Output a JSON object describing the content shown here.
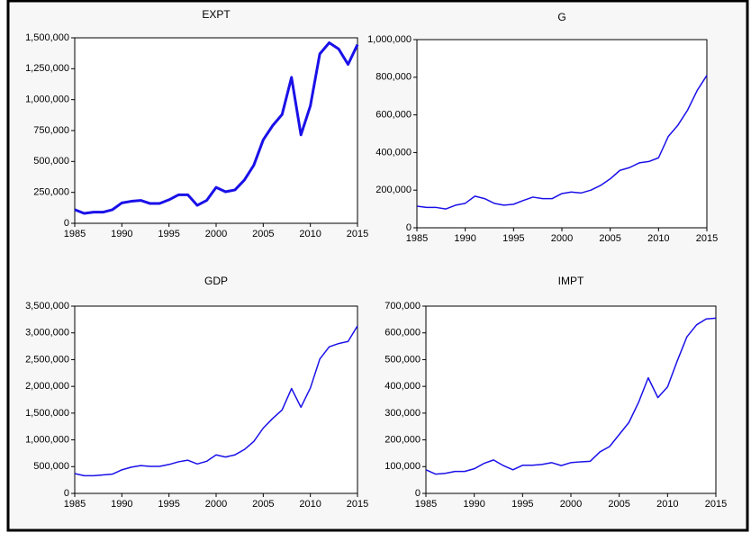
{
  "chart_data": [
    {
      "type": "line",
      "title": "EXPT",
      "color": "#1a10e8",
      "line_width": 3,
      "x": [
        1985,
        1986,
        1987,
        1988,
        1989,
        1990,
        1991,
        1992,
        1993,
        1994,
        1995,
        1996,
        1997,
        1998,
        1999,
        2000,
        2001,
        2002,
        2003,
        2004,
        2005,
        2006,
        2007,
        2008,
        2009,
        2010,
        2011,
        2012,
        2013,
        2014,
        2015
      ],
      "values": [
        110000,
        80000,
        90000,
        90000,
        110000,
        165000,
        178000,
        185000,
        160000,
        160000,
        190000,
        230000,
        230000,
        145000,
        185000,
        290000,
        255000,
        270000,
        350000,
        470000,
        675000,
        790000,
        880000,
        1180000,
        715000,
        950000,
        1370000,
        1460000,
        1410000,
        1285000,
        1445000
      ],
      "xlim": [
        1985,
        2015
      ],
      "xticks": [
        1985,
        1990,
        1995,
        2000,
        2005,
        2010,
        2015
      ],
      "ylim": [
        0,
        1500000
      ],
      "yticks": [
        0,
        {
          "value": 250000,
          "label": "250,000"
        },
        {
          "value": 500000,
          "label": "500,000"
        },
        {
          "value": 750000,
          "label": "750,000"
        },
        {
          "value": 1000000,
          "label": "1,000,000"
        },
        {
          "value": 1250000,
          "label": "1,250,000"
        },
        {
          "value": 1500000,
          "label": "1,500,000"
        }
      ]
    },
    {
      "type": "line",
      "title": "G",
      "color": "#1a10e8",
      "line_width": 1.5,
      "x": [
        1985,
        1986,
        1987,
        1988,
        1989,
        1990,
        1991,
        1992,
        1993,
        1994,
        1995,
        1996,
        1997,
        1998,
        1999,
        2000,
        2001,
        2002,
        2003,
        2004,
        2005,
        2006,
        2007,
        2008,
        2009,
        2010,
        2011,
        2012,
        2013,
        2014,
        2015
      ],
      "values": [
        115000,
        108000,
        108000,
        100000,
        120000,
        130000,
        168000,
        155000,
        130000,
        120000,
        125000,
        145000,
        163000,
        155000,
        155000,
        182000,
        190000,
        185000,
        200000,
        225000,
        260000,
        305000,
        320000,
        345000,
        352000,
        372000,
        485000,
        545000,
        625000,
        730000,
        810000
      ],
      "xlim": [
        1985,
        2015
      ],
      "xticks": [
        1985,
        1990,
        1995,
        2000,
        2005,
        2010,
        2015
      ],
      "ylim": [
        0,
        1000000
      ],
      "yticks": [
        0,
        {
          "value": 200000,
          "label": "200,000"
        },
        {
          "value": 400000,
          "label": "400,000"
        },
        {
          "value": 600000,
          "label": "600,000"
        },
        {
          "value": 800000,
          "label": "800,000"
        },
        {
          "value": 1000000,
          "label": "1,000,000"
        }
      ]
    },
    {
      "type": "line",
      "title": "GDP",
      "color": "#1a10e8",
      "line_width": 1.5,
      "x": [
        1985,
        1986,
        1987,
        1988,
        1989,
        1990,
        1991,
        1992,
        1993,
        1994,
        1995,
        1996,
        1997,
        1998,
        1999,
        2000,
        2001,
        2002,
        2003,
        2004,
        2005,
        2006,
        2007,
        2008,
        2009,
        2010,
        2011,
        2012,
        2013,
        2014,
        2015
      ],
      "values": [
        370000,
        330000,
        330000,
        345000,
        360000,
        440000,
        490000,
        520000,
        505000,
        505000,
        540000,
        590000,
        620000,
        550000,
        600000,
        720000,
        680000,
        720000,
        820000,
        970000,
        1220000,
        1400000,
        1560000,
        1960000,
        1610000,
        1970000,
        2510000,
        2740000,
        2800000,
        2840000,
        3130000
      ],
      "xlim": [
        1985,
        2015
      ],
      "xticks": [
        1985,
        1990,
        1995,
        2000,
        2005,
        2010,
        2015
      ],
      "ylim": [
        0,
        3500000
      ],
      "yticks": [
        0,
        {
          "value": 500000,
          "label": "500,000"
        },
        {
          "value": 1000000,
          "label": "1,000,000"
        },
        {
          "value": 1500000,
          "label": "1,500,000"
        },
        {
          "value": 2000000,
          "label": "2,000,000"
        },
        {
          "value": 2500000,
          "label": "2,500,000"
        },
        {
          "value": 3000000,
          "label": "3,000,000"
        },
        {
          "value": 3500000,
          "label": "3,500,000"
        }
      ]
    },
    {
      "type": "line",
      "title": "IMPT",
      "color": "#1a10e8",
      "line_width": 1.5,
      "x": [
        1985,
        1986,
        1987,
        1988,
        1989,
        1990,
        1991,
        1992,
        1993,
        1994,
        1995,
        1996,
        1997,
        1998,
        1999,
        2000,
        2001,
        2002,
        2003,
        2004,
        2005,
        2006,
        2007,
        2008,
        2009,
        2010,
        2011,
        2012,
        2013,
        2014,
        2015
      ],
      "values": [
        88000,
        72000,
        75000,
        82000,
        82000,
        92000,
        112000,
        125000,
        104000,
        88000,
        105000,
        105000,
        108000,
        115000,
        104000,
        115000,
        118000,
        120000,
        155000,
        175000,
        220000,
        265000,
        340000,
        432000,
        358000,
        398000,
        495000,
        585000,
        630000,
        652000,
        655000
      ],
      "xlim": [
        1985,
        2015
      ],
      "xticks": [
        1985,
        1990,
        1995,
        2000,
        2005,
        2010,
        2015
      ],
      "ylim": [
        0,
        700000
      ],
      "yticks": [
        0,
        {
          "value": 100000,
          "label": "100,000"
        },
        {
          "value": 200000,
          "label": "200,000"
        },
        {
          "value": 300000,
          "label": "300,000"
        },
        {
          "value": 400000,
          "label": "400,000"
        },
        {
          "value": 500000,
          "label": "500,000"
        },
        {
          "value": 600000,
          "label": "600,000"
        },
        {
          "value": 700000,
          "label": "700,000"
        }
      ]
    }
  ]
}
